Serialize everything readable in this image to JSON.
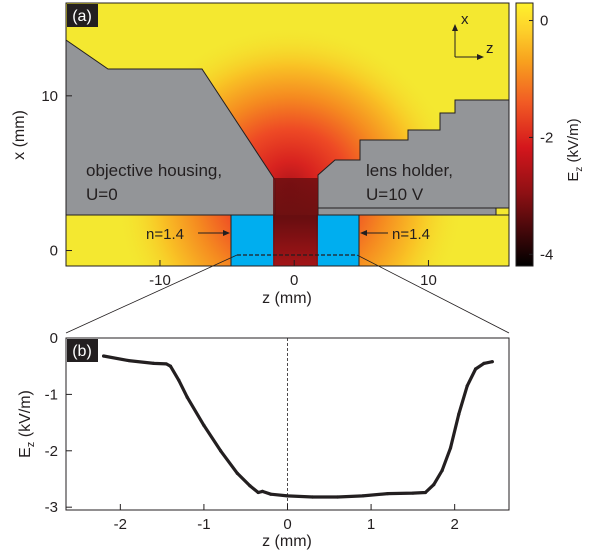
{
  "chart_data": [
    {
      "panel": "(a)",
      "type": "heatmap",
      "xlabel": "z (mm)",
      "ylabel": "x (mm)",
      "xticks": [
        "-10",
        "0",
        "10"
      ],
      "yticks": [
        "0",
        "10"
      ],
      "xlim": [
        -17,
        16
      ],
      "ylim": [
        -1,
        16
      ],
      "colorbar": {
        "label": "E_z (kV/m)",
        "ticks": [
          "0",
          "-2",
          "-4"
        ],
        "range": [
          -4.2,
          0.3
        ],
        "colors": [
          "#000000",
          "#5a0c0e",
          "#c8161c",
          "#ef4026",
          "#f7941d",
          "#fdd22b",
          "#fff22d"
        ]
      },
      "annotations": {
        "housing_line1": "objective housing,",
        "housing_line2": "U=0",
        "holder_line1": "lens holder,",
        "holder_line2": "U=10 V",
        "index_left": "n=1.4",
        "index_right": "n=1.4",
        "axis_x": "x",
        "axis_z": "z"
      },
      "colors": {
        "housing": "#939598",
        "window": "#00aeef",
        "field_background": "#f4e830"
      }
    },
    {
      "panel": "(b)",
      "type": "line",
      "xlabel": "z (mm)",
      "ylabel": "E_z (kV/m)",
      "xticks": [
        "-2",
        "-1",
        "0",
        "1",
        "2"
      ],
      "yticks": [
        "0",
        "-1",
        "-2",
        "-3"
      ],
      "xlim": [
        -2.65,
        2.65
      ],
      "ylim": [
        -3.05,
        0
      ],
      "x": [
        -2.2,
        -1.9,
        -1.6,
        -1.45,
        -1.4,
        -1.3,
        -1.2,
        -1.0,
        -0.8,
        -0.6,
        -0.45,
        -0.35,
        -0.3,
        -0.2,
        0.0,
        0.3,
        0.6,
        0.9,
        1.2,
        1.5,
        1.65,
        1.75,
        1.85,
        1.95,
        2.05,
        2.15,
        2.25,
        2.35,
        2.45
      ],
      "y": [
        -0.32,
        -0.4,
        -0.45,
        -0.46,
        -0.5,
        -0.75,
        -1.05,
        -1.55,
        -2.0,
        -2.4,
        -2.62,
        -2.74,
        -2.72,
        -2.77,
        -2.8,
        -2.82,
        -2.82,
        -2.8,
        -2.76,
        -2.75,
        -2.74,
        -2.6,
        -2.35,
        -1.95,
        -1.35,
        -0.85,
        -0.55,
        -0.45,
        -0.42
      ],
      "series_color": "#231f20"
    }
  ]
}
